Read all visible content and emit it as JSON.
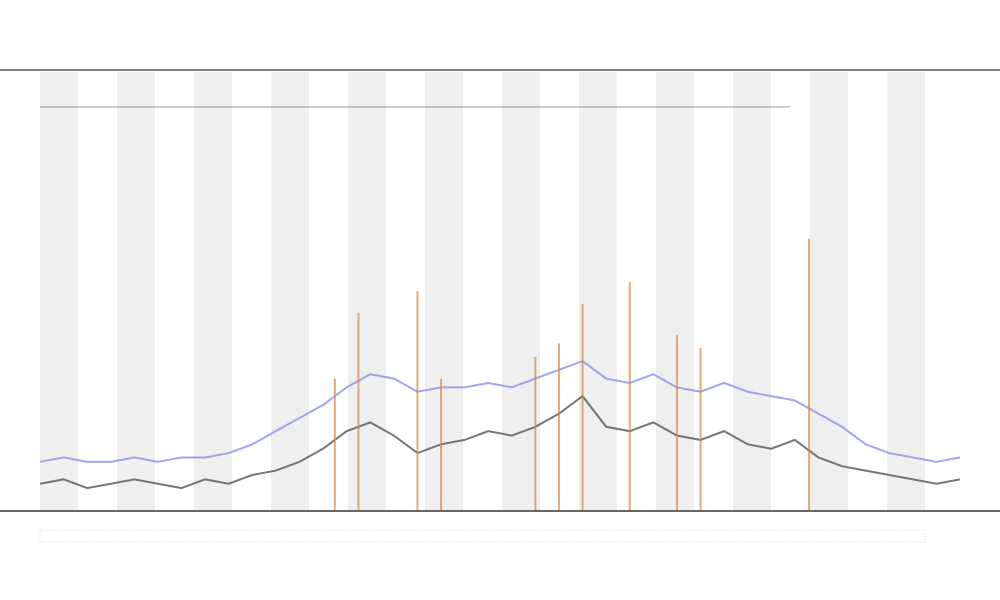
{
  "chart_data": {
    "type": "line",
    "x": [
      0,
      1,
      2,
      3,
      4,
      5,
      6,
      7,
      8,
      9,
      10,
      11,
      12,
      13,
      14,
      15,
      16,
      17,
      18,
      19,
      20,
      21,
      22,
      23,
      24,
      25,
      26,
      27,
      28,
      29,
      30,
      31,
      32,
      33,
      34,
      35,
      36,
      37,
      38,
      39
    ],
    "xlim": [
      0,
      39
    ],
    "ylim": [
      0,
      100
    ],
    "series": [
      {
        "color": "#555555",
        "values": [
          6,
          7,
          5,
          6,
          7,
          6,
          5,
          7,
          6,
          8,
          9,
          11,
          14,
          18,
          20,
          17,
          13,
          15,
          16,
          18,
          17,
          19,
          22,
          26,
          19,
          18,
          20,
          17,
          16,
          18,
          15,
          14,
          16,
          12,
          10,
          9,
          8,
          7,
          6,
          7
        ]
      },
      {
        "color": "#8a8ff0",
        "values": [
          11,
          12,
          11,
          11,
          12,
          11,
          12,
          12,
          13,
          15,
          18,
          21,
          24,
          28,
          31,
          30,
          27,
          28,
          28,
          29,
          28,
          30,
          32,
          34,
          30,
          29,
          31,
          28,
          27,
          29,
          27,
          26,
          25,
          22,
          19,
          15,
          13,
          12,
          11,
          12
        ]
      }
    ],
    "spikes": {
      "color": "#d98a3a",
      "x": [
        12.5,
        13.5,
        16,
        17,
        21,
        22,
        23,
        25,
        27,
        28,
        32.6
      ],
      "values": [
        30,
        45,
        50,
        30,
        35,
        38,
        47,
        52,
        40,
        37,
        62
      ]
    }
  }
}
